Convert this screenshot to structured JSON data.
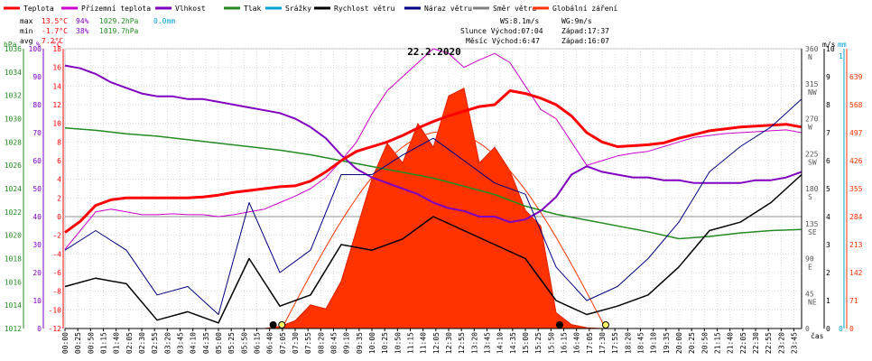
{
  "chart_data": {
    "type": "line",
    "title": "22.2.2020",
    "legend": [
      {
        "name": "Teplota",
        "color": "#ff0000"
      },
      {
        "name": "Přízemní teplota",
        "color": "#cc00cc"
      },
      {
        "name": "Vlhkost",
        "color": "#8000c0"
      },
      {
        "name": "Tlak",
        "color": "#228b22"
      },
      {
        "name": "Srážky",
        "color": "#00a0d0"
      },
      {
        "name": "Rychlost větru",
        "color": "#000000"
      },
      {
        "name": "Náraz větru",
        "color": "#000080"
      },
      {
        "name": "Směr větru",
        "color": "#808080"
      },
      {
        "name": "Globální záření",
        "color": "#ff3300"
      }
    ],
    "stats": {
      "max_label": "max",
      "max_temp": "13.5°C",
      "max_hum": "94%",
      "max_press": "1029.2hPa",
      "max_rain": "0.0mm",
      "min_label": "min",
      "min_temp": "-1.7°C",
      "min_hum": "38%",
      "min_press": "1019.7hPa",
      "avg_label": "avg",
      "avg_temp": "7.2°C"
    },
    "info": {
      "ws": "WS:8.1m/s",
      "wg": "WG:9m/s",
      "slunce": "Slunce Východ:07:04",
      "slunce_zapad": "Západ:17:37",
      "mesic": "Měsíc  Východ:6:47",
      "mesic_zapad": "Západ:16:07"
    },
    "xlabel": "čas",
    "x_ticks": [
      "00:00",
      "00:25",
      "00:50",
      "01:15",
      "01:40",
      "02:05",
      "02:30",
      "02:55",
      "03:20",
      "03:45",
      "04:10",
      "04:35",
      "05:00",
      "05:25",
      "05:50",
      "06:15",
      "06:40",
      "07:05",
      "07:30",
      "07:55",
      "08:20",
      "08:45",
      "09:10",
      "09:35",
      "10:00",
      "10:25",
      "10:50",
      "11:15",
      "11:40",
      "12:05",
      "12:30",
      "12:55",
      "13:20",
      "13:45",
      "14:10",
      "14:35",
      "15:00",
      "15:25",
      "15:50",
      "16:15",
      "16:40",
      "17:05",
      "17:30",
      "17:55",
      "18:20",
      "18:45",
      "19:10",
      "19:35",
      "20:00",
      "20:25",
      "20:50",
      "21:15",
      "21:40",
      "22:05",
      "22:30",
      "22:55",
      "23:20",
      "23:45"
    ],
    "axes": {
      "hpa": {
        "unit": "hPa",
        "ticks": [
          "1036",
          "1034",
          "1032",
          "1030",
          "1028",
          "1026",
          "1024",
          "1022",
          "1020",
          "1018",
          "1016",
          "1014",
          "1012"
        ],
        "range": [
          1012,
          1036
        ]
      },
      "humidity": {
        "unit": "%",
        "ticks": [
          "100",
          "90",
          "80",
          "70",
          "60",
          "50",
          "40",
          "30",
          "20",
          "10",
          "0"
        ],
        "range": [
          0,
          100
        ]
      },
      "temp": {
        "unit": "°C",
        "ticks": [
          "18",
          "16",
          "14",
          "12",
          "10",
          "8",
          "6",
          "4",
          "2",
          "0",
          "-2",
          "-4",
          "-6",
          "-8",
          "-10",
          "-12"
        ],
        "range": [
          -12,
          18
        ]
      },
      "direction": {
        "ticks": [
          "360",
          "315",
          "270",
          "225",
          "180",
          "135",
          "90",
          "45",
          "0"
        ],
        "dirs": [
          "N",
          "NW",
          "W",
          "SW",
          "S",
          "SE",
          "E",
          "NE",
          ""
        ]
      },
      "wind": {
        "unit": "m/s",
        "ticks": [
          "10",
          "9",
          "8",
          "7",
          "6",
          "5",
          "4",
          "3",
          "2",
          "1",
          "0"
        ],
        "range": [
          0,
          10
        ]
      },
      "rain": {
        "unit": "mm",
        "ticks": [
          "1",
          "0"
        ]
      },
      "radiation": {
        "ticks": [
          "639",
          "568",
          "497",
          "426",
          "355",
          "284",
          "213",
          "142",
          "71",
          "0"
        ],
        "range": [
          0,
          710
        ]
      }
    },
    "series": [
      {
        "name": "Teplota",
        "unit": "°C",
        "x": [
          0,
          0.5,
          1,
          1.5,
          2,
          2.5,
          3,
          3.5,
          4,
          4.5,
          5,
          5.5,
          6,
          6.5,
          7,
          7.5,
          8,
          8.5,
          9,
          9.5,
          10,
          10.5,
          11,
          11.5,
          12,
          12.5,
          13,
          13.5,
          14,
          14.5,
          15,
          15.5,
          16,
          16.5,
          17,
          17.5,
          18,
          18.5,
          19,
          19.5,
          20,
          20.5,
          21,
          21.5,
          22,
          22.5,
          23,
          23.5,
          24
        ],
        "values": [
          -1.7,
          -0.5,
          1.2,
          1.8,
          2.0,
          2.0,
          2.0,
          2.0,
          2.0,
          2.1,
          2.3,
          2.6,
          2.8,
          3.0,
          3.2,
          3.3,
          3.8,
          4.8,
          6.0,
          7.0,
          7.5,
          8.0,
          8.7,
          9.5,
          10.2,
          10.8,
          11.3,
          11.8,
          12.0,
          13.5,
          13.2,
          12.7,
          12.0,
          10.8,
          9.0,
          8.0,
          7.5,
          7.6,
          7.7,
          7.9,
          8.4,
          8.8,
          9.2,
          9.4,
          9.6,
          9.7,
          9.8,
          9.9,
          9.6
        ]
      },
      {
        "name": "Přízemní teplota",
        "unit": "°C",
        "x": [
          0,
          0.5,
          1,
          1.5,
          2,
          2.5,
          3,
          3.5,
          4,
          4.5,
          5,
          5.5,
          6,
          6.5,
          7,
          7.5,
          8,
          8.5,
          9,
          9.5,
          10,
          10.5,
          11,
          11.5,
          12,
          12.5,
          13,
          13.5,
          14,
          14.5,
          15,
          15.5,
          16,
          16.5,
          17,
          17.5,
          18,
          18.5,
          19,
          19.5,
          20,
          20.5,
          21,
          21.5,
          22,
          22.5,
          23,
          23.5,
          24
        ],
        "values": [
          -3.5,
          -1.5,
          0.5,
          0.8,
          0.5,
          0.2,
          0.2,
          0.3,
          0.2,
          0.2,
          0.0,
          0.2,
          0.5,
          0.8,
          1.5,
          2.2,
          3.0,
          4.2,
          6.0,
          8.0,
          11.0,
          13.5,
          15.0,
          16.5,
          18.0,
          17.5,
          16.0,
          16.8,
          17.5,
          16.5,
          14.0,
          11.5,
          10.5,
          8.0,
          5.5,
          6.0,
          6.5,
          6.8,
          7.0,
          7.5,
          8.0,
          8.5,
          8.7,
          8.9,
          9.0,
          9.1,
          9.2,
          9.3,
          9.0
        ]
      },
      {
        "name": "Vlhkost",
        "unit": "%",
        "x": [
          0,
          0.5,
          1,
          1.5,
          2,
          2.5,
          3,
          3.5,
          4,
          4.5,
          5,
          5.5,
          6,
          6.5,
          7,
          7.5,
          8,
          8.5,
          9,
          9.5,
          10,
          10.5,
          11,
          11.5,
          12,
          12.5,
          13,
          13.5,
          14,
          14.5,
          15,
          15.5,
          16,
          16.5,
          17,
          17.5,
          18,
          18.5,
          19,
          19.5,
          20,
          20.5,
          21,
          21.5,
          22,
          22.5,
          23,
          23.5,
          24
        ],
        "values": [
          94,
          93,
          91,
          88,
          86,
          84,
          83,
          83,
          82,
          82,
          81,
          80,
          79,
          78,
          77,
          75,
          72,
          68,
          62,
          57,
          54,
          52,
          50,
          48,
          45,
          43,
          42,
          40,
          40,
          38,
          39,
          42,
          47,
          55,
          58,
          56,
          55,
          54,
          54,
          53,
          53,
          52,
          52,
          52,
          52,
          53,
          53,
          54,
          56
        ]
      },
      {
        "name": "Tlak",
        "unit": "hPa",
        "x": [
          0,
          1,
          2,
          3,
          4,
          5,
          6,
          7,
          8,
          9,
          10,
          11,
          12,
          13,
          14,
          15,
          16,
          17,
          18,
          19,
          20,
          21,
          22,
          23,
          24
        ],
        "values": [
          1029.2,
          1029.0,
          1028.7,
          1028.5,
          1028.2,
          1027.9,
          1027.6,
          1027.3,
          1026.9,
          1026.4,
          1025.9,
          1025.4,
          1024.9,
          1024.2,
          1023.5,
          1022.5,
          1021.8,
          1021.3,
          1020.8,
          1020.3,
          1019.7,
          1019.9,
          1020.2,
          1020.4,
          1020.5
        ]
      },
      {
        "name": "Rychlost větru",
        "unit": "m/s",
        "x": [
          0,
          1,
          2,
          3,
          4,
          5,
          6,
          7,
          8,
          9,
          10,
          11,
          12,
          13,
          14,
          15,
          16,
          17,
          18,
          19,
          20,
          21,
          22,
          23,
          24
        ],
        "values": [
          1.5,
          1.8,
          1.6,
          0.3,
          0.6,
          0.2,
          2.5,
          0.8,
          1.2,
          3.0,
          2.8,
          3.2,
          4.0,
          3.5,
          3.0,
          2.5,
          1.0,
          0.5,
          0.8,
          1.2,
          2.2,
          3.5,
          3.8,
          4.5,
          5.5
        ]
      },
      {
        "name": "Náraz větru",
        "unit": "m/s",
        "x": [
          0,
          1,
          2,
          3,
          4,
          5,
          6,
          7,
          8,
          9,
          10,
          11,
          12,
          13,
          14,
          15,
          16,
          17,
          18,
          19,
          20,
          21,
          22,
          23,
          24
        ],
        "values": [
          2.8,
          3.5,
          2.8,
          1.2,
          1.5,
          0.5,
          4.5,
          2.0,
          2.8,
          5.5,
          5.5,
          6.2,
          6.8,
          6.0,
          5.2,
          4.8,
          2.2,
          1.0,
          1.5,
          2.5,
          3.8,
          5.6,
          6.5,
          7.2,
          8.2
        ]
      },
      {
        "name": "Globální záření",
        "unit": "W/m2",
        "x": [
          0,
          6.5,
          7,
          7.5,
          8,
          8.5,
          9,
          9.5,
          10,
          10.5,
          11,
          11.5,
          12,
          12.5,
          13,
          13.5,
          14,
          14.5,
          15,
          15.5,
          16,
          16.5,
          17,
          17.5,
          24
        ],
        "values": [
          0,
          0,
          5,
          20,
          60,
          50,
          120,
          250,
          380,
          470,
          420,
          520,
          460,
          590,
          610,
          420,
          460,
          400,
          300,
          260,
          40,
          10,
          2,
          0,
          0
        ]
      }
    ]
  }
}
